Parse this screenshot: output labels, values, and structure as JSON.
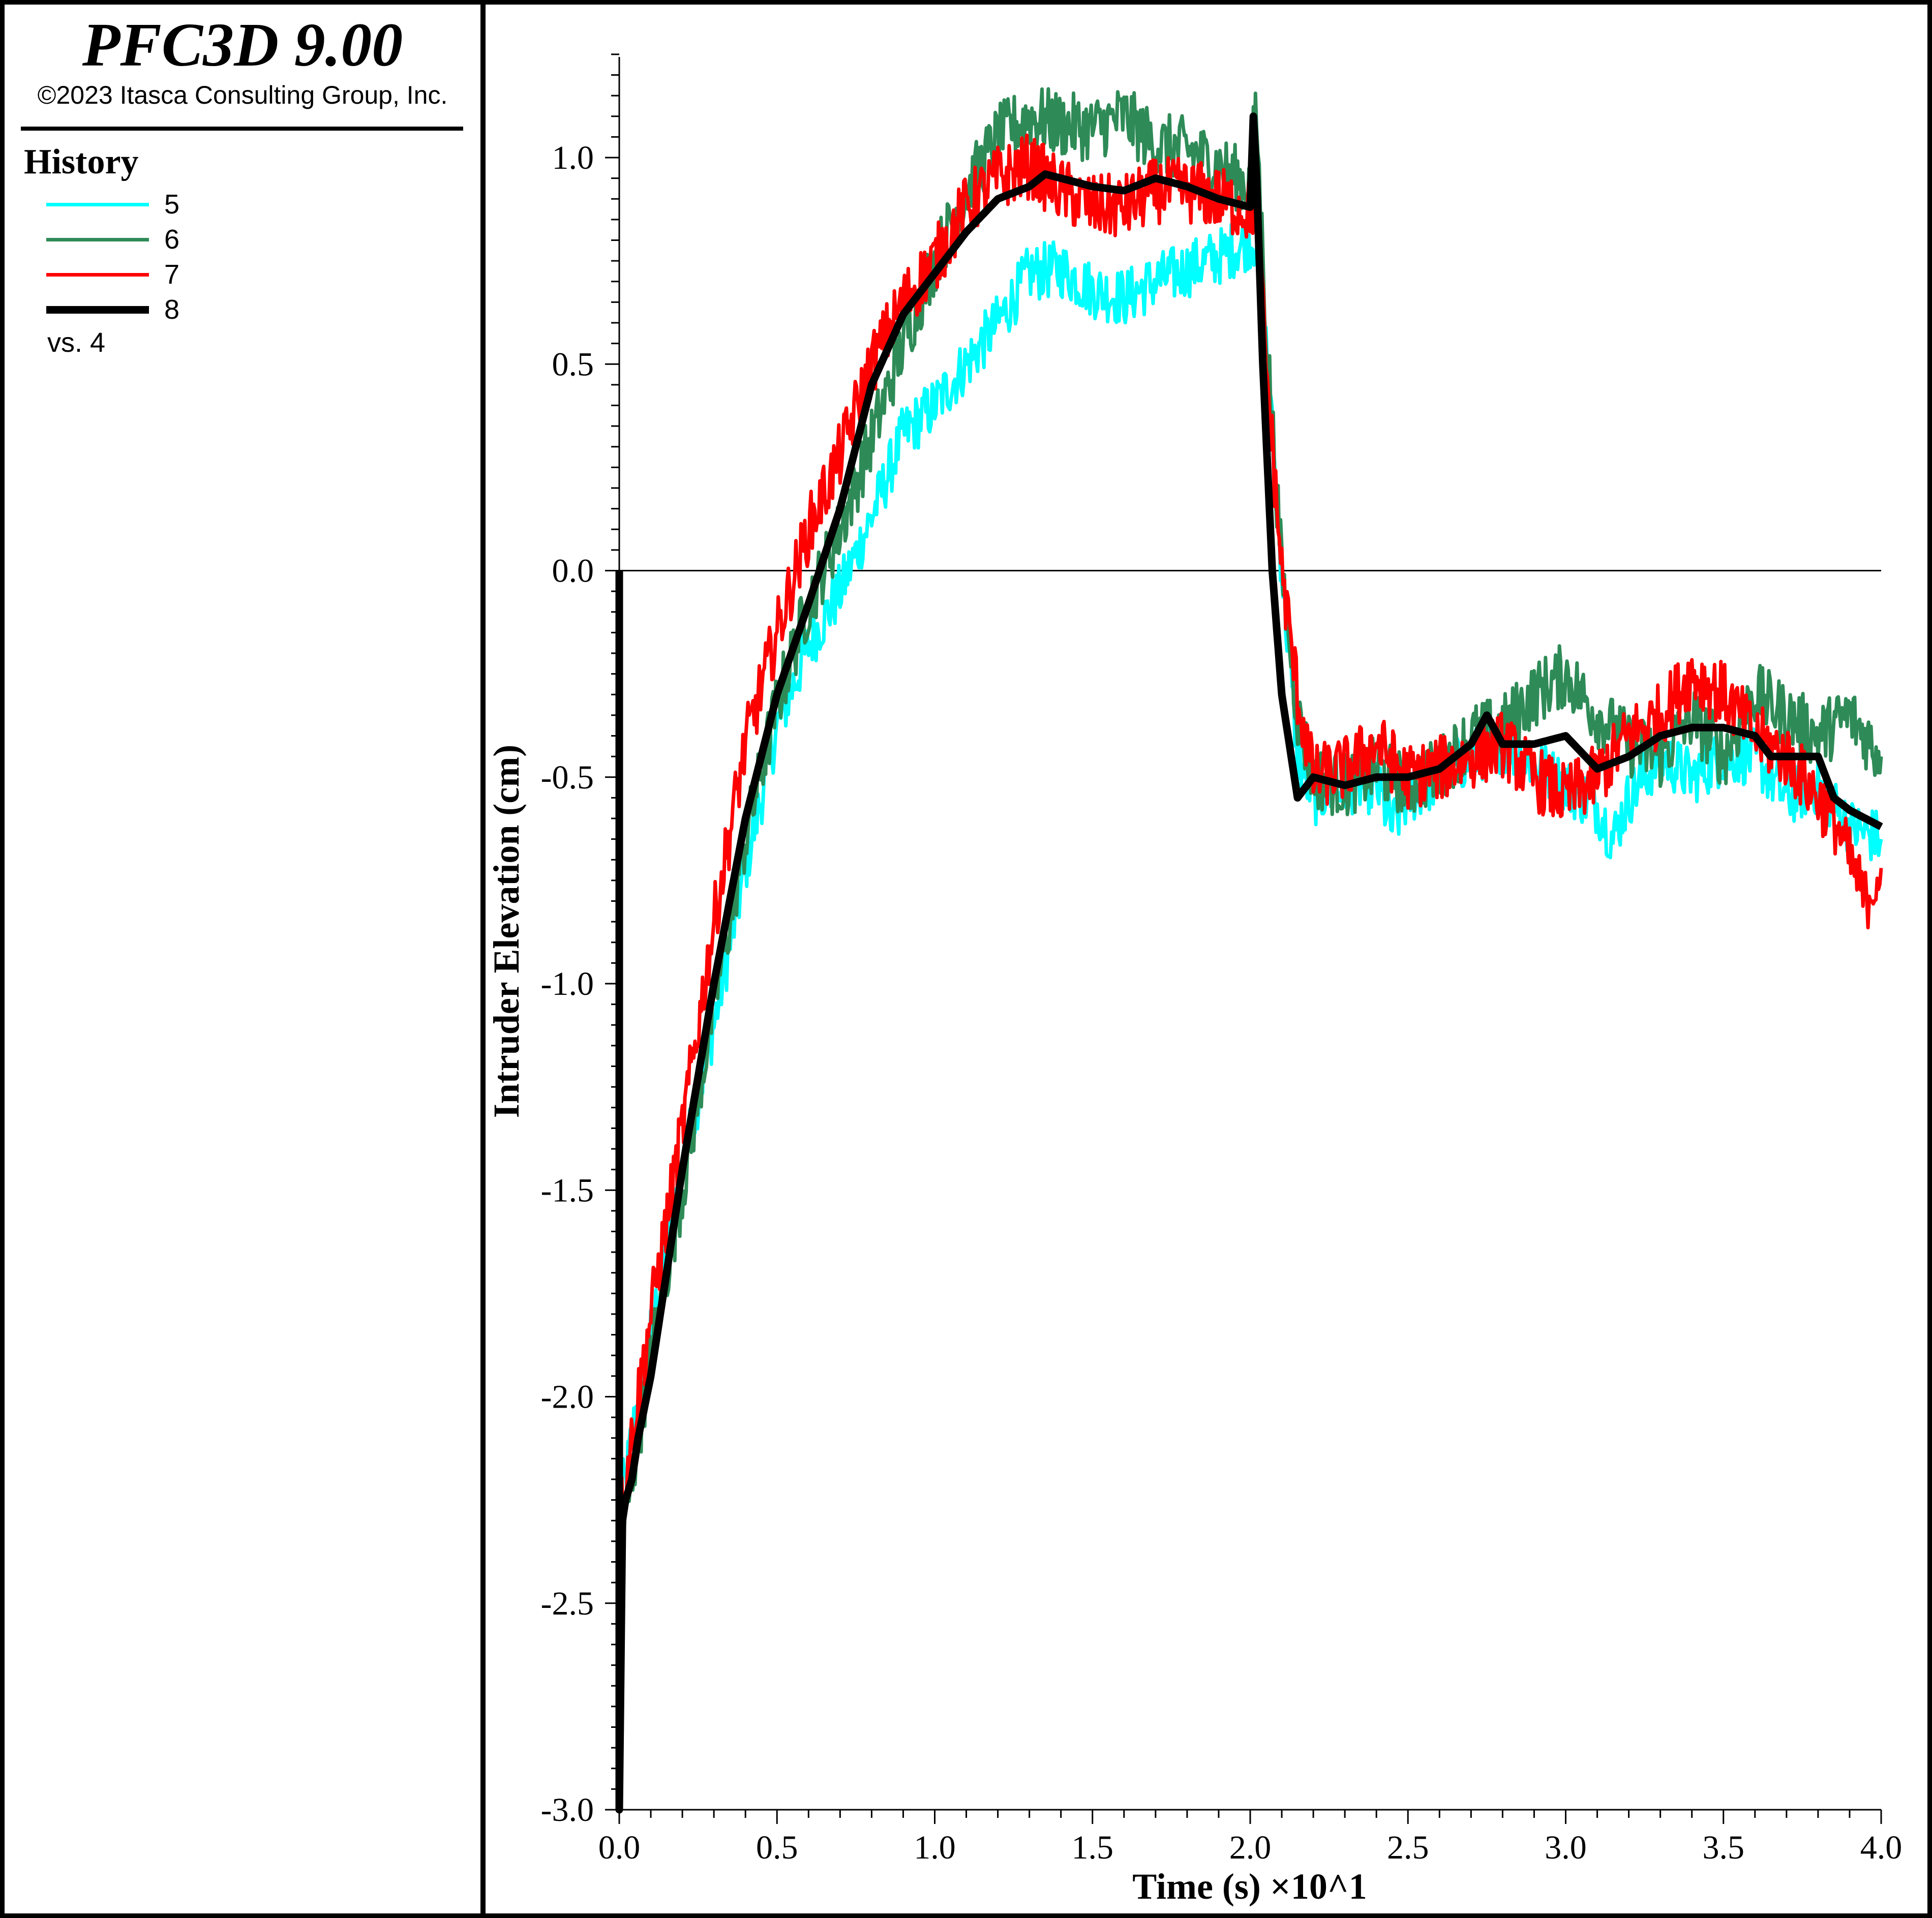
{
  "header": {
    "title": "PFC3D 9.00",
    "copyright": "©2023 Itasca Consulting Group, Inc."
  },
  "legend": {
    "title": "History",
    "entries": [
      {
        "label": "5",
        "color": "#00ffff"
      },
      {
        "label": "6",
        "color": "#2e8b57"
      },
      {
        "label": "7",
        "color": "#ff0000"
      },
      {
        "label": "8",
        "color": "#000000"
      }
    ],
    "vs_label": "vs. 4"
  },
  "chart_data": {
    "type": "line",
    "xlabel": "Time (s) ×10^1",
    "ylabel": "Intruder Elevation (cm)",
    "xlim": [
      0.0,
      4.0
    ],
    "ylim": [
      -3.0,
      1.25
    ],
    "xticks": [
      "0.0",
      "0.5",
      "1.0",
      "1.5",
      "2.0",
      "2.5",
      "3.0",
      "3.5",
      "4.0"
    ],
    "yticks": [
      "-3.0",
      "-2.5",
      "-2.0",
      "-1.5",
      "-1.0",
      "-0.5",
      "0.0",
      "0.5",
      "1.0"
    ],
    "zero_line": true,
    "grid": false,
    "series": [
      {
        "name": "5",
        "color": "#00ffff",
        "noise": 0.07,
        "x": [
          0.0,
          0.02,
          0.05,
          0.1,
          0.2,
          0.3,
          0.4,
          0.5,
          0.6,
          0.7,
          0.8,
          0.9,
          1.0,
          1.1,
          1.2,
          1.3,
          1.4,
          1.5,
          1.6,
          1.7,
          1.8,
          1.9,
          2.0,
          2.02,
          2.05,
          2.1,
          2.15,
          2.2,
          2.3,
          2.4,
          2.45,
          2.5,
          2.6,
          2.7,
          2.8,
          2.9,
          3.0,
          3.1,
          3.15,
          3.2,
          3.3,
          3.4,
          3.5,
          3.6,
          3.7,
          3.8,
          3.9,
          4.0
        ],
        "y": [
          -2.25,
          -2.2,
          -2.05,
          -1.85,
          -1.45,
          -1.1,
          -0.72,
          -0.38,
          -0.18,
          -0.05,
          0.13,
          0.33,
          0.4,
          0.5,
          0.6,
          0.72,
          0.73,
          0.68,
          0.66,
          0.7,
          0.73,
          0.76,
          0.8,
          0.8,
          0.55,
          0.0,
          -0.45,
          -0.55,
          -0.52,
          -0.52,
          -0.62,
          -0.55,
          -0.5,
          -0.45,
          -0.42,
          -0.47,
          -0.52,
          -0.57,
          -0.65,
          -0.55,
          -0.45,
          -0.5,
          -0.45,
          -0.45,
          -0.55,
          -0.52,
          -0.62,
          -0.65
        ]
      },
      {
        "name": "6",
        "color": "#2e8b57",
        "noise": 0.08,
        "x": [
          0.0,
          0.02,
          0.05,
          0.1,
          0.2,
          0.3,
          0.4,
          0.5,
          0.6,
          0.7,
          0.8,
          0.9,
          1.0,
          1.1,
          1.2,
          1.3,
          1.4,
          1.5,
          1.6,
          1.7,
          1.8,
          1.9,
          2.0,
          2.01,
          2.02,
          2.05,
          2.1,
          2.15,
          2.2,
          2.3,
          2.4,
          2.5,
          2.6,
          2.7,
          2.8,
          2.9,
          3.0,
          3.1,
          3.2,
          3.3,
          3.4,
          3.5,
          3.6,
          3.7,
          3.8,
          3.9,
          4.0
        ],
        "y": [
          -2.4,
          -2.3,
          -2.15,
          -1.9,
          -1.5,
          -1.05,
          -0.65,
          -0.32,
          -0.08,
          0.1,
          0.32,
          0.55,
          0.75,
          0.92,
          1.05,
          1.1,
          1.08,
          1.07,
          1.1,
          1.03,
          1.02,
          0.98,
          0.93,
          1.05,
          1.1,
          0.6,
          0.0,
          -0.35,
          -0.5,
          -0.52,
          -0.48,
          -0.52,
          -0.48,
          -0.4,
          -0.38,
          -0.3,
          -0.25,
          -0.35,
          -0.42,
          -0.45,
          -0.35,
          -0.45,
          -0.3,
          -0.35,
          -0.4,
          -0.35,
          -0.45
        ]
      },
      {
        "name": "7",
        "color": "#ff0000",
        "noise": 0.08,
        "x": [
          0.0,
          0.02,
          0.05,
          0.1,
          0.2,
          0.3,
          0.4,
          0.5,
          0.6,
          0.7,
          0.8,
          0.9,
          1.0,
          1.1,
          1.2,
          1.3,
          1.4,
          1.5,
          1.6,
          1.7,
          1.8,
          1.9,
          2.0,
          2.02,
          2.05,
          2.1,
          2.15,
          2.2,
          2.3,
          2.4,
          2.5,
          2.6,
          2.7,
          2.8,
          2.9,
          3.0,
          3.1,
          3.2,
          3.3,
          3.4,
          3.5,
          3.6,
          3.7,
          3.8,
          3.85,
          3.9,
          3.95,
          4.0
        ],
        "y": [
          -2.3,
          -2.2,
          -2.05,
          -1.8,
          -1.35,
          -0.85,
          -0.42,
          -0.15,
          0.1,
          0.28,
          0.5,
          0.65,
          0.75,
          0.88,
          0.95,
          0.98,
          0.92,
          0.88,
          0.88,
          0.92,
          0.92,
          0.9,
          0.87,
          0.9,
          0.5,
          0.0,
          -0.3,
          -0.5,
          -0.48,
          -0.42,
          -0.5,
          -0.48,
          -0.45,
          -0.42,
          -0.5,
          -0.55,
          -0.5,
          -0.4,
          -0.35,
          -0.25,
          -0.3,
          -0.4,
          -0.45,
          -0.55,
          -0.6,
          -0.7,
          -0.8,
          -0.72
        ]
      },
      {
        "name": "8",
        "color": "#000000",
        "noise": 0.0,
        "x": [
          0.0,
          0.0,
          0.01,
          0.02,
          0.04,
          0.06,
          0.1,
          0.15,
          0.2,
          0.3,
          0.4,
          0.5,
          0.6,
          0.7,
          0.8,
          0.9,
          1.0,
          1.1,
          1.2,
          1.3,
          1.35,
          1.4,
          1.5,
          1.6,
          1.7,
          1.8,
          1.9,
          2.0,
          2.01,
          2.02,
          2.04,
          2.07,
          2.1,
          2.15,
          2.2,
          2.3,
          2.4,
          2.5,
          2.6,
          2.7,
          2.75,
          2.8,
          2.9,
          3.0,
          3.1,
          3.2,
          3.3,
          3.4,
          3.5,
          3.6,
          3.65,
          3.7,
          3.8,
          3.85,
          3.9,
          3.95,
          4.0
        ],
        "y": [
          0.0,
          -3.0,
          -2.3,
          -2.25,
          -2.2,
          -2.1,
          -1.95,
          -1.7,
          -1.45,
          -1.0,
          -0.6,
          -0.3,
          -0.08,
          0.15,
          0.45,
          0.62,
          0.72,
          0.82,
          0.9,
          0.93,
          0.96,
          0.95,
          0.93,
          0.92,
          0.95,
          0.93,
          0.9,
          0.88,
          1.1,
          0.95,
          0.5,
          0.0,
          -0.3,
          -0.55,
          -0.5,
          -0.52,
          -0.5,
          -0.5,
          -0.48,
          -0.42,
          -0.35,
          -0.42,
          -0.42,
          -0.4,
          -0.48,
          -0.45,
          -0.4,
          -0.38,
          -0.38,
          -0.4,
          -0.45,
          -0.45,
          -0.45,
          -0.55,
          -0.58,
          -0.6,
          -0.62
        ]
      }
    ]
  }
}
